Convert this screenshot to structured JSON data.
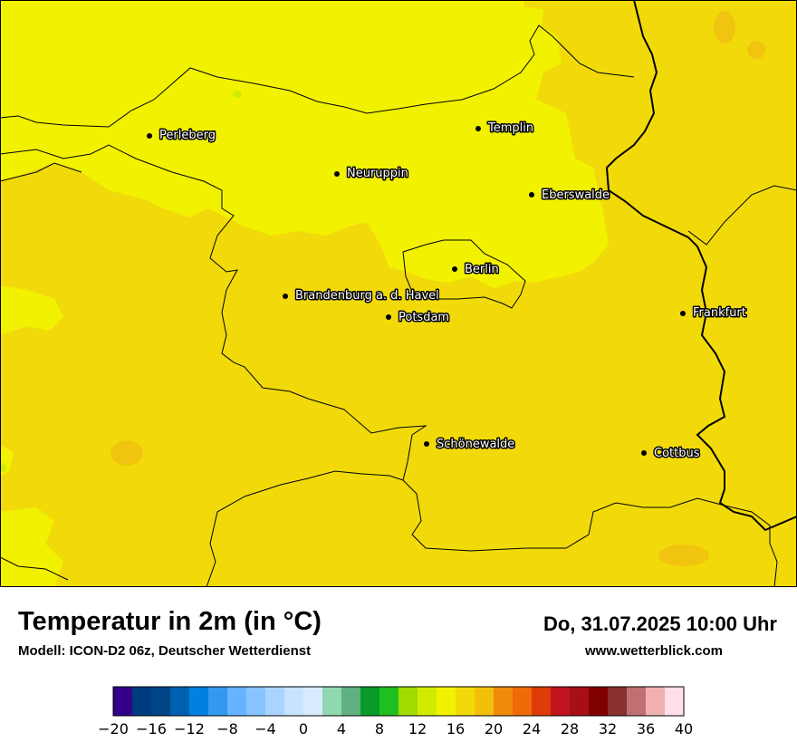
{
  "map": {
    "cities": [
      {
        "name": "Perleberg"
      },
      {
        "name": "Templin"
      },
      {
        "name": "Neuruppin"
      },
      {
        "name": "Eberswalde"
      },
      {
        "name": "Berlin"
      },
      {
        "name": "Brandenburg a. d. Havel"
      },
      {
        "name": "Potsdam"
      },
      {
        "name": "Frankfurt"
      },
      {
        "name": "Schönewalde"
      },
      {
        "name": "Cottbus"
      }
    ],
    "colors": {
      "warm_16_18": "#f2f200",
      "warm_18_20": "#f2da0a",
      "warm_14_16": "#d2ea00",
      "warm_20_22": "#f1c40f",
      "border": "#000000"
    }
  },
  "header": {
    "title": "Temperatur in 2m (in °C)",
    "subtitle": "Modell: ICON-D2 06z, Deutscher Wetterdienst",
    "datetime": "Do, 31.07.2025 10:00 Uhr",
    "website": "www.wetterblick.com"
  },
  "legend": {
    "min": -20,
    "max": 40,
    "step": 2,
    "tick_labels": [
      "−20",
      "−16",
      "−12",
      "−8",
      "−4",
      "0",
      "4",
      "8",
      "12",
      "16",
      "20",
      "24",
      "28",
      "32",
      "36",
      "40"
    ],
    "colors": [
      "#330088",
      "#003b80",
      "#004585",
      "#0060b0",
      "#0080e0",
      "#3399f0",
      "#66b3ff",
      "#88c4ff",
      "#aad4ff",
      "#c8e2ff",
      "#d8ebff",
      "#90d8b0",
      "#60b080",
      "#0a9a2a",
      "#1fbf1f",
      "#a0dc00",
      "#d2ea00",
      "#f2f200",
      "#f2da0a",
      "#f2c00a",
      "#f08a0a",
      "#f06a0a",
      "#e03c0a",
      "#c0141e",
      "#a80e16",
      "#800000",
      "#8a3030",
      "#c07070",
      "#f0b0b0",
      "#ffe0e8"
    ]
  }
}
